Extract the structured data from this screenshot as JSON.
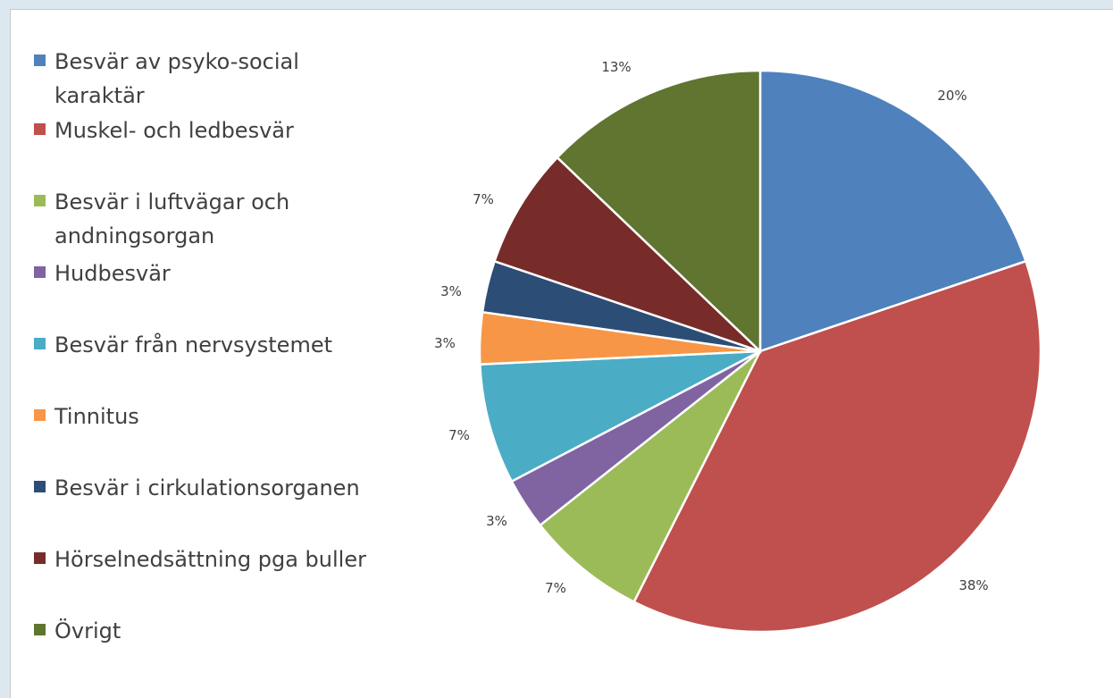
{
  "chart_data": {
    "type": "pie",
    "title": "",
    "legend_position": "left",
    "categories": [
      "Besvär av psyko-social karaktär",
      "Muskel- och ledbesvär",
      "Besvär i luftvägar och andningsorgan",
      "Hudbesvär",
      "Besvär från nervsystemet",
      "Tinnitus",
      "Besvär i cirkulationsorganen",
      "Hörselnedsättning pga buller",
      "Övrigt"
    ],
    "values": [
      20,
      38,
      7,
      3,
      7,
      3,
      3,
      7,
      13
    ],
    "data_labels": [
      "20%",
      "38%",
      "7%",
      "3%",
      "7%",
      "3%",
      "3%",
      "7%",
      "13%"
    ],
    "colors": [
      "#4f81bd",
      "#c0504d",
      "#9bbb59",
      "#8064a2",
      "#4bacc6",
      "#f79646",
      "#2c4d75",
      "#772c2a",
      "#5f7530"
    ]
  }
}
